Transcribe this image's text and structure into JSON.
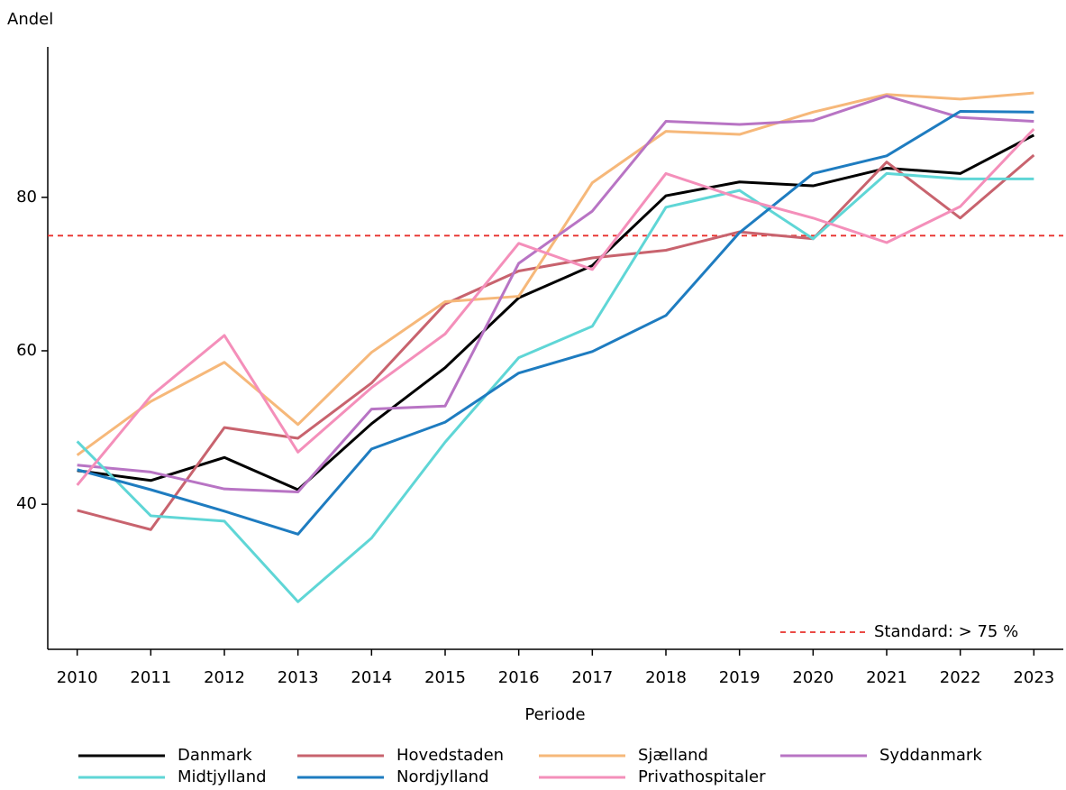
{
  "chart_data": {
    "type": "line",
    "ylabel": "Andel",
    "xlabel": "Periode",
    "x": [
      2010,
      2011,
      2012,
      2013,
      2014,
      2015,
      2016,
      2017,
      2018,
      2019,
      2020,
      2021,
      2022,
      2023
    ],
    "xlim": [
      2009.6,
      2023.4
    ],
    "xticks": [
      2010,
      2011,
      2012,
      2013,
      2014,
      2015,
      2016,
      2017,
      2018,
      2019,
      2020,
      2021,
      2022,
      2023
    ],
    "ylim": [
      21.1,
      99.6
    ],
    "yticks": [
      40,
      60,
      80
    ],
    "reference": {
      "value": 75,
      "label": "Standard: > 75 %",
      "color": "#e8302c"
    },
    "series": [
      {
        "name": "Danmark",
        "color": "#000000",
        "values": [
          44.4,
          43.1,
          46.1,
          41.9,
          50.5,
          57.8,
          66.9,
          71.1,
          80.2,
          82.0,
          81.5,
          83.8,
          83.1,
          88.1
        ]
      },
      {
        "name": "Hovedstaden",
        "color": "#c8636e",
        "values": [
          39.2,
          36.7,
          50.0,
          48.6,
          55.8,
          66.1,
          70.4,
          72.1,
          73.1,
          75.5,
          74.6,
          84.6,
          77.3,
          85.5
        ]
      },
      {
        "name": "Sjælland",
        "color": "#f6b87a",
        "values": [
          46.4,
          53.4,
          58.5,
          50.4,
          59.8,
          66.4,
          67.1,
          81.9,
          88.6,
          88.2,
          91.1,
          93.4,
          92.8,
          93.6
        ]
      },
      {
        "name": "Syddanmark",
        "color": "#b874c4",
        "values": [
          45.1,
          44.2,
          42.0,
          41.6,
          52.4,
          52.8,
          71.4,
          78.2,
          89.9,
          89.5,
          90.0,
          93.2,
          90.4,
          89.9
        ]
      },
      {
        "name": "Midtjylland",
        "color": "#5fd6d6",
        "values": [
          48.2,
          38.5,
          37.8,
          27.3,
          35.6,
          48.1,
          59.1,
          63.2,
          78.7,
          80.9,
          74.6,
          83.1,
          82.4,
          82.4
        ]
      },
      {
        "name": "Nordjylland",
        "color": "#1e7cc0",
        "values": [
          44.5,
          41.9,
          39.1,
          36.1,
          47.2,
          50.7,
          57.1,
          59.9,
          64.6,
          75.4,
          83.1,
          85.4,
          91.2,
          91.1
        ]
      },
      {
        "name": "Privathospitaler",
        "color": "#f48fba",
        "values": [
          42.5,
          54.1,
          62.0,
          46.8,
          55.2,
          62.2,
          74.0,
          70.6,
          83.1,
          79.9,
          77.3,
          74.1,
          78.8,
          88.9
        ]
      }
    ]
  }
}
